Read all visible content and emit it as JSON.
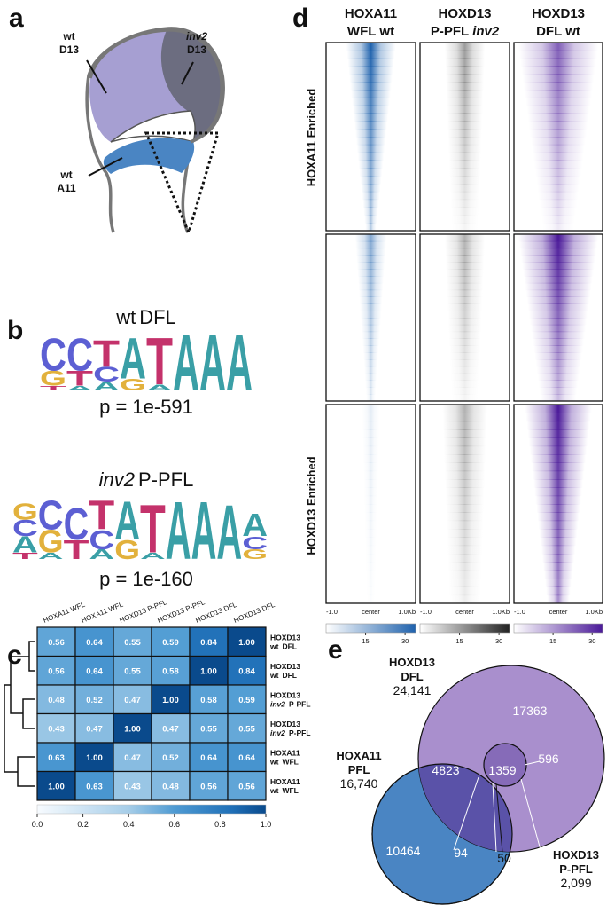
{
  "panels": {
    "a": {
      "label": "a",
      "annotations": [
        {
          "line1": "wt",
          "line2": "D13",
          "italic": false
        },
        {
          "line1": "inv2",
          "line2": "D13",
          "italic": true
        },
        {
          "line1": "wt",
          "line2": "A11",
          "italic": false
        }
      ]
    },
    "b": {
      "label": "b",
      "letter_colors": {
        "A": "#3a9fa6",
        "C": "#5c5fd3",
        "G": "#e2b13c",
        "T": "#c4326b"
      },
      "motifs": [
        {
          "genotype": "wt",
          "italic": false,
          "tissue": "DFL",
          "p_value": "p = 1e-591",
          "columns": [
            {
              "letters": [
                "C",
                "G",
                "T"
              ],
              "heights": [
                0.55,
                0.25,
                0.08
              ]
            },
            {
              "letters": [
                "C",
                "T",
                "A"
              ],
              "heights": [
                0.55,
                0.25,
                0.08
              ]
            },
            {
              "letters": [
                "T",
                "C",
                "A"
              ],
              "heights": [
                0.45,
                0.25,
                0.15
              ]
            },
            {
              "letters": [
                "A",
                "G"
              ],
              "heights": [
                0.7,
                0.2
              ]
            },
            {
              "letters": [
                "T",
                "A"
              ],
              "heights": [
                0.8,
                0.1
              ]
            },
            {
              "letters": [
                "A"
              ],
              "heights": [
                0.95
              ]
            },
            {
              "letters": [
                "A"
              ],
              "heights": [
                0.95
              ]
            },
            {
              "letters": [
                "A"
              ],
              "heights": [
                0.95
              ]
            }
          ]
        },
        {
          "genotype": "inv2",
          "italic": true,
          "tissue": "P-PFL",
          "p_value": "p = 1e-160",
          "columns": [
            {
              "letters": [
                "G",
                "C",
                "A",
                "T"
              ],
              "heights": [
                0.25,
                0.25,
                0.25,
                0.1
              ]
            },
            {
              "letters": [
                "C",
                "G",
                "A"
              ],
              "heights": [
                0.45,
                0.35,
                0.1
              ]
            },
            {
              "letters": [
                "C",
                "T"
              ],
              "heights": [
                0.5,
                0.3
              ]
            },
            {
              "letters": [
                "T",
                "C",
                "A"
              ],
              "heights": [
                0.45,
                0.3,
                0.15
              ]
            },
            {
              "letters": [
                "A",
                "G"
              ],
              "heights": [
                0.6,
                0.3
              ]
            },
            {
              "letters": [
                "T",
                "A"
              ],
              "heights": [
                0.75,
                0.1
              ]
            },
            {
              "letters": [
                "A"
              ],
              "heights": [
                0.9
              ]
            },
            {
              "letters": [
                "A"
              ],
              "heights": [
                0.9
              ]
            },
            {
              "letters": [
                "A"
              ],
              "heights": [
                0.85
              ]
            },
            {
              "letters": [
                "A",
                "C",
                "G"
              ],
              "heights": [
                0.35,
                0.2,
                0.15
              ]
            }
          ]
        }
      ]
    },
    "c": {
      "label": "c",
      "columns": [
        "HOXA11 WFL",
        "HOXA11 WFL",
        "HOXD13 P-PFL",
        "HOXD13 P-PFL",
        "HOXD13 DFL",
        "HOXD13 DFL"
      ],
      "rows": [
        {
          "protein": "HOXD13",
          "genotype": "wt",
          "italic": false,
          "tissue": "DFL"
        },
        {
          "protein": "HOXD13",
          "genotype": "wt",
          "italic": false,
          "tissue": "DFL"
        },
        {
          "protein": "HOXD13",
          "genotype": "inv2",
          "italic": true,
          "tissue": "P-PFL"
        },
        {
          "protein": "HOXD13",
          "genotype": "inv2",
          "italic": true,
          "tissue": "P-PFL"
        },
        {
          "protein": "HOXA11",
          "genotype": "wt",
          "italic": false,
          "tissue": "WFL"
        },
        {
          "protein": "HOXA11",
          "genotype": "wt",
          "italic": false,
          "tissue": "WFL"
        }
      ],
      "matrix": [
        [
          0.56,
          0.64,
          0.55,
          0.59,
          0.84,
          1.0
        ],
        [
          0.56,
          0.64,
          0.55,
          0.58,
          1.0,
          0.84
        ],
        [
          0.48,
          0.52,
          0.47,
          1.0,
          0.58,
          0.59
        ],
        [
          0.43,
          0.47,
          1.0,
          0.47,
          0.55,
          0.55
        ],
        [
          0.63,
          1.0,
          0.47,
          0.52,
          0.64,
          0.64
        ],
        [
          1.0,
          0.63,
          0.43,
          0.48,
          0.56,
          0.56
        ]
      ],
      "value_labels": [
        [
          "0.56",
          "0.64",
          "0.55",
          "0.59",
          "0.84",
          "1.00"
        ],
        [
          "0.56",
          "0.64",
          "0.55",
          "0.58",
          "1.00",
          "0.84"
        ],
        [
          "0.48",
          "0.52",
          "0.47",
          "1.00",
          "0.58",
          "0.59"
        ],
        [
          "0.43",
          "0.47",
          "1.00",
          "0.47",
          "0.55",
          "0.55"
        ],
        [
          "0.63",
          "1.00",
          "0.47",
          "0.52",
          "0.64",
          "0.64"
        ],
        [
          "1.00",
          "0.63",
          "0.43",
          "0.48",
          "0.56",
          "0.56"
        ]
      ],
      "colorbar": {
        "range": [
          0,
          1
        ],
        "ticks": [
          {
            "value": 0,
            "label": "0.0"
          },
          {
            "value": 0.2,
            "label": "0.2"
          },
          {
            "value": 0.4,
            "label": "0.4"
          },
          {
            "value": 0.6,
            "label": "0.6"
          },
          {
            "value": 0.8,
            "label": "0.8"
          },
          {
            "value": 1,
            "label": "1.0"
          }
        ]
      }
    },
    "d": {
      "label": "d",
      "row_groups": [
        "HOXA11 Enriched",
        "HOXD13 Enriched"
      ],
      "columns": [
        {
          "protein": "HOXA11",
          "tissue": "WFL",
          "genotype": "wt",
          "italic": false,
          "color": "#1f62ad",
          "axis_labels": [
            "-1.0",
            "center",
            "1.0Kb"
          ],
          "colorbar_range": [
            0,
            34
          ],
          "colorbar_ticks": [
            15,
            30
          ]
        },
        {
          "protein": "HOXD13",
          "tissue": "P-PFL",
          "genotype": "inv2",
          "italic": true,
          "color": "#222222",
          "axis_labels": [
            "-1.0",
            "center",
            "1.0Kb"
          ],
          "colorbar_range": [
            0,
            34
          ],
          "colorbar_ticks": [
            15,
            30
          ]
        },
        {
          "protein": "HOXD13",
          "tissue": "DFL",
          "genotype": "wt",
          "italic": false,
          "color": "#4b1a99",
          "axis_labels": [
            "-1.0",
            "center",
            "1.0Kb"
          ],
          "colorbar_range": [
            0,
            34
          ],
          "colorbar_ticks": [
            15,
            30
          ]
        }
      ]
    },
    "e": {
      "label": "e",
      "sets": [
        {
          "name": "HOXD13",
          "tissue": "DFL",
          "total": "24,141",
          "color": "#a98fcd"
        },
        {
          "name": "HOXA11",
          "tissue": "PFL",
          "total": "16,740",
          "color": "#4a85c3"
        },
        {
          "name": "HOXD13",
          "tissue": "P-PFL",
          "total": "2,099",
          "color": "#6a4fa8"
        }
      ],
      "regions": [
        17363,
        4823,
        10464,
        1359,
        596,
        94,
        50
      ]
    }
  }
}
